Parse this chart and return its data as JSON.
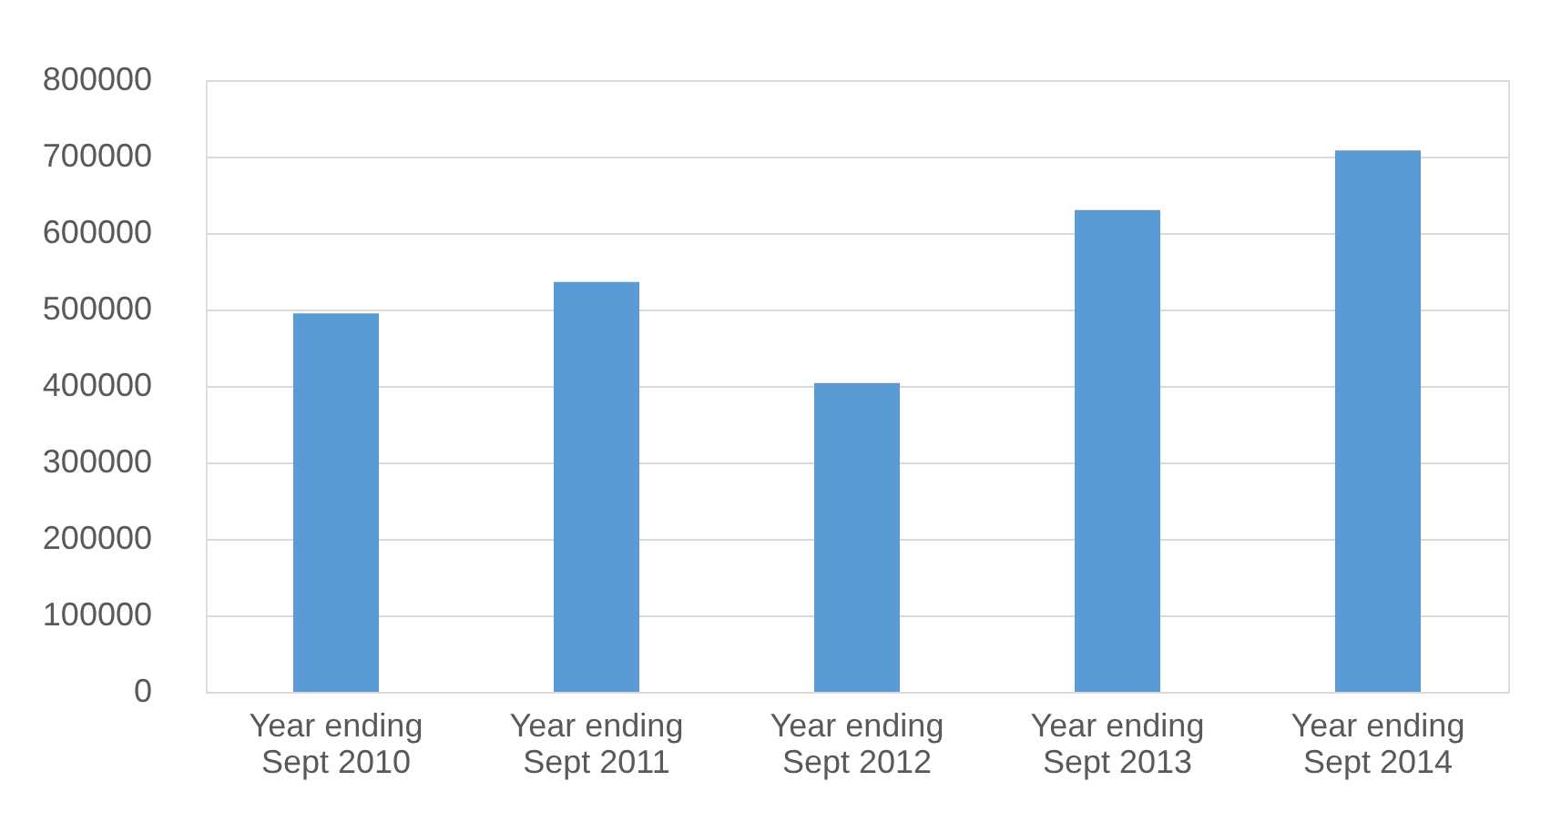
{
  "chart_data": {
    "type": "bar",
    "categories": [
      "Year ending Sept 2010",
      "Year ending Sept 2011",
      "Year ending Sept 2012",
      "Year ending Sept 2013",
      "Year ending Sept 2014"
    ],
    "values": [
      495000,
      536000,
      404000,
      630000,
      708000
    ],
    "color": "#5b9bd5",
    "ylim": [
      0,
      800000
    ],
    "yticks": [
      0,
      100000,
      200000,
      300000,
      400000,
      500000,
      600000,
      700000,
      800000
    ],
    "grid": "y"
  }
}
